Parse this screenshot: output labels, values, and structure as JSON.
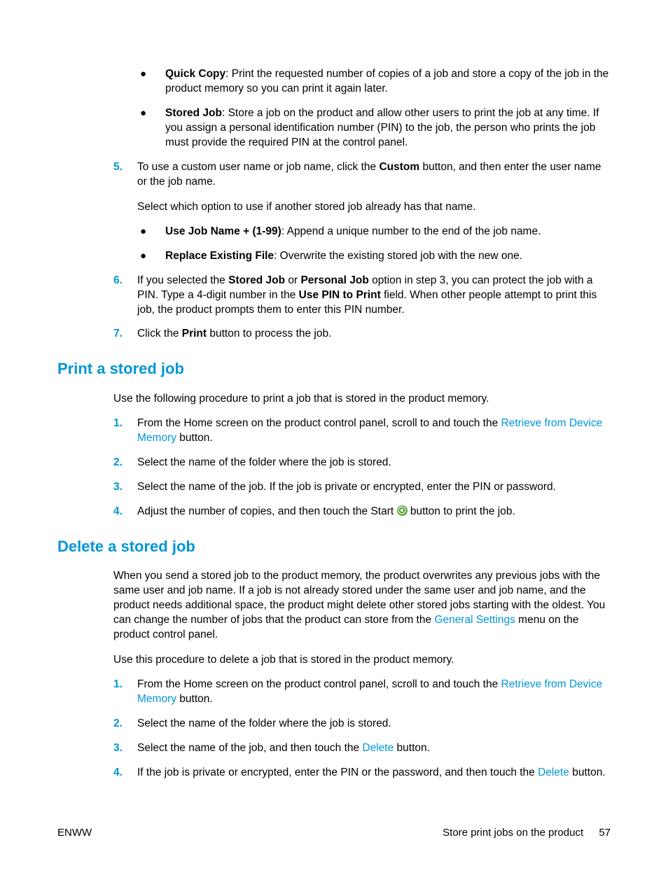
{
  "colors": {
    "accent": "#0096d6",
    "link": "#0096d6",
    "text": "#000000",
    "start_icon_bg": "#5da63f",
    "start_icon_fg": "#ffffff"
  },
  "top_bullets": [
    {
      "bold": "Quick Copy",
      "rest": ": Print the requested number of copies of a job and store a copy of the job in the product memory so you can print it again later."
    },
    {
      "bold": "Stored Job",
      "rest": ": Store a job on the product and allow other users to print the job at any time. If you assign a personal identification number (PIN) to the job, the person who prints the job must provide the required PIN at the control panel."
    }
  ],
  "step5": {
    "num": "5.",
    "parts": [
      "To use a custom user name or job name, click the ",
      "Custom",
      " button, and then enter the user name or the job name."
    ],
    "sub_para": "Select which option to use if another stored job already has that name.",
    "sub_bullets": [
      {
        "bold": "Use Job Name + (1-99)",
        "rest": ": Append a unique number to the end of the job name."
      },
      {
        "bold": "Replace Existing File",
        "rest": ": Overwrite the existing stored job with the new one."
      }
    ]
  },
  "step6": {
    "num": "6.",
    "parts": [
      "If you selected the ",
      "Stored Job",
      " or ",
      "Personal Job",
      " option in step 3, you can protect the job with a PIN. Type a 4-digit number in the ",
      "Use PIN to Print",
      " field. When other people attempt to print this job, the product prompts them to enter this PIN number."
    ]
  },
  "step7": {
    "num": "7.",
    "parts": [
      "Click the ",
      "Print",
      " button to process the job."
    ]
  },
  "section_print": {
    "title": "Print a stored job",
    "intro": "Use the following procedure to print a job that is stored in the product memory.",
    "steps": [
      {
        "num": "1.",
        "segments": [
          {
            "t": "From the Home screen on the product control panel, scroll to and touch the "
          },
          {
            "t": "Retrieve from Device Memory",
            "link": true
          },
          {
            "t": " button."
          }
        ]
      },
      {
        "num": "2.",
        "segments": [
          {
            "t": "Select the name of the folder where the job is stored."
          }
        ]
      },
      {
        "num": "3.",
        "segments": [
          {
            "t": "Select the name of the job. If the job is private or encrypted, enter the PIN or password."
          }
        ]
      },
      {
        "num": "4.",
        "segments": [
          {
            "t": "Adjust the number of copies, and then touch the Start "
          },
          {
            "icon": "start"
          },
          {
            "t": " button to print the job."
          }
        ]
      }
    ]
  },
  "section_delete": {
    "title": "Delete a stored job",
    "intro_segments": [
      {
        "t": "When you send a stored job to the product memory, the product overwrites any previous jobs with the same user and job name. If a job is not already stored under the same user and job name, and the product needs additional space, the product might delete other stored jobs starting with the oldest. You can change the number of jobs that the product can store from the "
      },
      {
        "t": "General Settings",
        "link": true
      },
      {
        "t": " menu on the product control panel."
      }
    ],
    "intro2": "Use this procedure to delete a job that is stored in the product memory.",
    "steps": [
      {
        "num": "1.",
        "segments": [
          {
            "t": "From the Home screen on the product control panel, scroll to and touch the "
          },
          {
            "t": "Retrieve from Device Memory",
            "link": true
          },
          {
            "t": " button."
          }
        ]
      },
      {
        "num": "2.",
        "segments": [
          {
            "t": "Select the name of the folder where the job is stored."
          }
        ]
      },
      {
        "num": "3.",
        "segments": [
          {
            "t": "Select the name of the job, and then touch the "
          },
          {
            "t": "Delete",
            "link": true
          },
          {
            "t": " button."
          }
        ]
      },
      {
        "num": "4.",
        "segments": [
          {
            "t": "If the job is private or encrypted, enter the PIN or the password, and then touch the "
          },
          {
            "t": "Delete",
            "link": true
          },
          {
            "t": " button."
          }
        ]
      }
    ]
  },
  "footer": {
    "left": "ENWW",
    "right": "Store print jobs on the product",
    "page": "57"
  }
}
